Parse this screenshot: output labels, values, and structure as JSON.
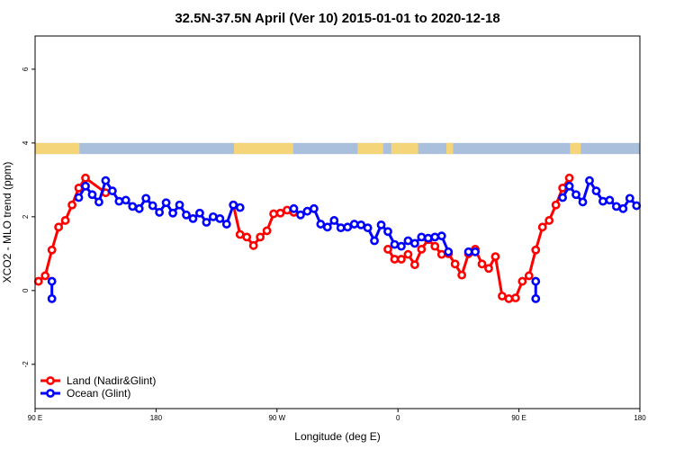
{
  "chart_data": {
    "type": "line",
    "title": "32.5N-37.5N April (Ver 10)   2015-01-01 to 2020-12-18",
    "xlabel": "Longitude (deg E)",
    "ylabel": "XCO2 - MLO trend (ppm)",
    "xlim": [
      90,
      540
    ],
    "ylim": [
      -3.2,
      6.9
    ],
    "x_ticks": [
      {
        "value": 90,
        "label": "90 E"
      },
      {
        "value": 180,
        "label": "180"
      },
      {
        "value": 270,
        "label": "90 W"
      },
      {
        "value": 360,
        "label": "0"
      },
      {
        "value": 450,
        "label": "90 E"
      },
      {
        "value": 540,
        "label": "180"
      }
    ],
    "y_ticks": [
      {
        "value": -2,
        "label": "-2"
      },
      {
        "value": 0,
        "label": "0"
      },
      {
        "value": 2,
        "label": "2"
      },
      {
        "value": 4,
        "label": "4"
      },
      {
        "value": 6,
        "label": "6"
      }
    ],
    "land_mask_band": {
      "y_range": [
        3.7,
        4.0
      ],
      "ocean_color": "#a9bfdc",
      "land_color": "#f5d57a",
      "land_lon_ranges": [
        [
          90,
          123
        ],
        [
          238,
          282
        ],
        [
          330,
          349
        ],
        [
          355,
          375
        ],
        [
          396,
          401
        ],
        [
          488,
          496
        ]
      ]
    },
    "series": [
      {
        "name": "Land (Nadir&Glint)",
        "color": "#ff0000",
        "segments": [
          [
            [
              92.5,
              0.25
            ],
            [
              97.5,
              0.4
            ],
            [
              102.5,
              1.1
            ],
            [
              107.5,
              1.72
            ],
            [
              112.5,
              1.9
            ],
            [
              117.5,
              2.32
            ],
            [
              122.5,
              2.78
            ],
            [
              127.5,
              3.05
            ],
            [
              142.5,
              2.65
            ]
          ],
          [
            [
              237.5,
              2.32
            ],
            [
              242.5,
              1.52
            ],
            [
              247.5,
              1.45
            ],
            [
              252.5,
              1.22
            ],
            [
              257.5,
              1.45
            ],
            [
              262.5,
              1.62
            ],
            [
              267.5,
              2.08
            ],
            [
              272.5,
              2.1
            ],
            [
              277.5,
              2.18
            ],
            [
              282.5,
              2.12
            ]
          ],
          [
            [
              352.5,
              1.12
            ],
            [
              357.5,
              0.85
            ],
            [
              362.5,
              0.85
            ],
            [
              367.5,
              0.98
            ],
            [
              372.5,
              0.7
            ],
            [
              377.5,
              1.12
            ],
            [
              382.5,
              1.38
            ],
            [
              387.5,
              1.2
            ],
            [
              392.5,
              0.98
            ],
            [
              397.5,
              1.0
            ],
            [
              402.5,
              0.72
            ],
            [
              407.5,
              0.42
            ],
            [
              412.5,
              1.0
            ],
            [
              417.5,
              1.12
            ],
            [
              422.5,
              0.72
            ],
            [
              427.5,
              0.6
            ],
            [
              432.5,
              0.92
            ],
            [
              437.5,
              -0.15
            ],
            [
              442.5,
              -0.22
            ],
            [
              447.5,
              -0.2
            ],
            [
              452.5,
              0.25
            ],
            [
              457.5,
              0.4
            ],
            [
              462.5,
              1.1
            ],
            [
              467.5,
              1.72
            ],
            [
              472.5,
              1.9
            ],
            [
              477.5,
              2.32
            ],
            [
              482.5,
              2.78
            ],
            [
              487.5,
              3.05
            ]
          ]
        ]
      },
      {
        "name": "Ocean (Glint)",
        "color": "#0000ff",
        "segments": [
          [
            [
              102.5,
              -0.22
            ],
            [
              102.5,
              0.25
            ]
          ],
          [
            [
              122.5,
              2.52
            ],
            [
              127.5,
              2.83
            ],
            [
              132.5,
              2.6
            ],
            [
              137.5,
              2.4
            ],
            [
              142.5,
              2.98
            ],
            [
              147.5,
              2.7
            ],
            [
              152.5,
              2.42
            ],
            [
              157.5,
              2.45
            ],
            [
              162.5,
              2.28
            ],
            [
              167.5,
              2.22
            ],
            [
              172.5,
              2.5
            ],
            [
              177.5,
              2.3
            ],
            [
              182.5,
              2.12
            ],
            [
              187.5,
              2.38
            ],
            [
              192.5,
              2.1
            ],
            [
              197.5,
              2.32
            ],
            [
              202.5,
              2.05
            ],
            [
              207.5,
              1.95
            ],
            [
              212.5,
              2.1
            ],
            [
              217.5,
              1.85
            ],
            [
              222.5,
              2.0
            ],
            [
              227.5,
              1.95
            ],
            [
              232.5,
              1.8
            ],
            [
              237.5,
              2.32
            ],
            [
              242.5,
              2.25
            ]
          ],
          [
            [
              282.5,
              2.22
            ],
            [
              287.5,
              2.05
            ],
            [
              292.5,
              2.15
            ],
            [
              297.5,
              2.22
            ],
            [
              302.5,
              1.8
            ],
            [
              307.5,
              1.72
            ],
            [
              312.5,
              1.9
            ],
            [
              317.5,
              1.7
            ],
            [
              322.5,
              1.72
            ],
            [
              327.5,
              1.8
            ],
            [
              332.5,
              1.78
            ],
            [
              337.5,
              1.7
            ],
            [
              342.5,
              1.35
            ],
            [
              347.5,
              1.78
            ],
            [
              352.5,
              1.6
            ],
            [
              357.5,
              1.25
            ],
            [
              362.5,
              1.2
            ],
            [
              367.5,
              1.35
            ],
            [
              372.5,
              1.28
            ],
            [
              377.5,
              1.45
            ],
            [
              382.5,
              1.42
            ],
            [
              387.5,
              1.45
            ],
            [
              392.5,
              1.48
            ],
            [
              397.5,
              1.05
            ]
          ],
          [
            [
              412.5,
              1.05
            ],
            [
              417.5,
              1.05
            ]
          ],
          [
            [
              462.5,
              -0.22
            ],
            [
              462.5,
              0.25
            ]
          ],
          [
            [
              482.5,
              2.52
            ],
            [
              487.5,
              2.83
            ],
            [
              492.5,
              2.6
            ],
            [
              497.5,
              2.4
            ],
            [
              502.5,
              2.98
            ],
            [
              507.5,
              2.7
            ],
            [
              512.5,
              2.42
            ],
            [
              517.5,
              2.45
            ],
            [
              522.5,
              2.28
            ],
            [
              527.5,
              2.22
            ],
            [
              532.5,
              2.5
            ],
            [
              537.5,
              2.3
            ]
          ]
        ]
      }
    ],
    "legend": {
      "placement": "bottom-left",
      "entries": [
        "Land (Nadir&Glint)",
        "Ocean (Glint)"
      ]
    },
    "grid": false
  }
}
